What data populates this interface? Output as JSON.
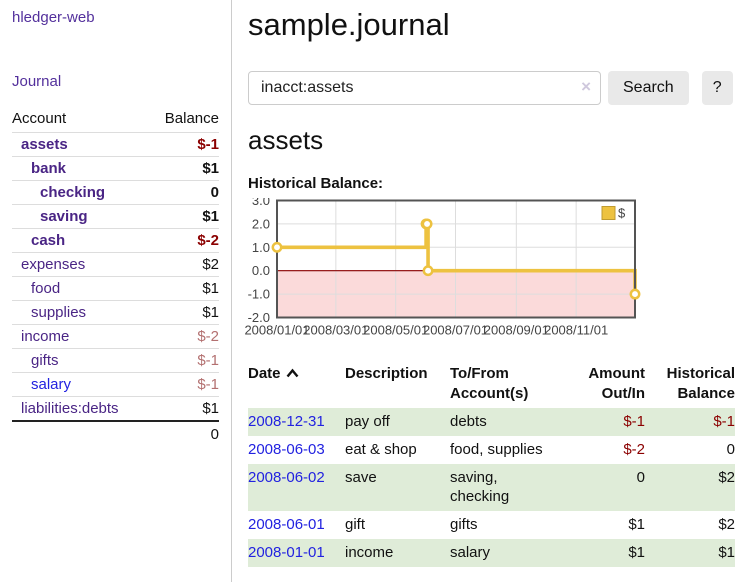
{
  "sidebar": {
    "title": "hledger-web",
    "journal_link": "Journal",
    "accounts_table": {
      "account_header": "Account",
      "balance_header": "Balance",
      "rows": [
        {
          "name": "assets",
          "balance": "$-1",
          "level": 1,
          "bold": true,
          "balance_style": "negative"
        },
        {
          "name": "bank",
          "balance": "$1",
          "level": 2,
          "bold": true,
          "balance_style": "normal"
        },
        {
          "name": "checking",
          "balance": "0",
          "level": 3,
          "bold": true,
          "balance_style": "normal"
        },
        {
          "name": "saving",
          "balance": "$1",
          "level": 3,
          "bold": true,
          "balance_style": "normal"
        },
        {
          "name": "cash",
          "balance": "$-2",
          "level": 2,
          "bold": true,
          "balance_style": "negative"
        },
        {
          "name": "expenses",
          "balance": "$2",
          "level": 1,
          "bold": false,
          "balance_style": "normal"
        },
        {
          "name": "food",
          "balance": "$1",
          "level": 2,
          "bold": false,
          "balance_style": "normal"
        },
        {
          "name": "supplies",
          "balance": "$1",
          "level": 2,
          "bold": false,
          "balance_style": "normal"
        },
        {
          "name": "income",
          "balance": "$-2",
          "level": 1,
          "bold": false,
          "balance_style": "negative-light"
        },
        {
          "name": "gifts",
          "balance": "$-1",
          "level": 2,
          "bold": false,
          "balance_style": "negative-light"
        },
        {
          "name": "salary",
          "balance": "$-1",
          "level": 2,
          "bold": false,
          "balance_style": "negative-light",
          "link_style": "blue"
        },
        {
          "name": "liabilities:debts",
          "balance": "$1",
          "level": 1,
          "bold": false,
          "balance_style": "normal"
        }
      ],
      "total": "0"
    }
  },
  "main": {
    "title": "sample.journal",
    "search": {
      "value": "inacct:assets",
      "clear_icon": "×",
      "search_button": "Search",
      "help_button": "?"
    },
    "account_heading": "assets",
    "chart_title": "Historical Balance:",
    "register": {
      "headers": {
        "date": "Date",
        "description": "Description",
        "accounts": "To/From Account(s)",
        "amount": "Amount Out/In",
        "balance": "Historical Balance"
      },
      "rows": [
        {
          "date": "2008-12-31",
          "description": "pay off",
          "accounts": "debts",
          "amount": "$-1",
          "amount_style": "negative",
          "balance": "$-1",
          "balance_style": "negative"
        },
        {
          "date": "2008-06-03",
          "description": "eat & shop",
          "accounts": "food, supplies",
          "amount": "$-2",
          "amount_style": "negative",
          "balance": "0",
          "balance_style": "normal"
        },
        {
          "date": "2008-06-02",
          "description": "save",
          "accounts": "saving, checking",
          "amount": "0",
          "amount_style": "normal",
          "balance": "$2",
          "balance_style": "normal"
        },
        {
          "date": "2008-06-01",
          "description": "gift",
          "accounts": "gifts",
          "amount": "$1",
          "amount_style": "normal",
          "balance": "$2",
          "balance_style": "normal"
        },
        {
          "date": "2008-01-01",
          "description": "income",
          "accounts": "salary",
          "amount": "$1",
          "amount_style": "normal",
          "balance": "$1",
          "balance_style": "normal"
        }
      ]
    }
  },
  "chart_data": {
    "type": "line",
    "step": true,
    "title": "Historical Balance",
    "series": [
      {
        "name": "$",
        "color": "#edc240",
        "points": [
          [
            "2008-01-01",
            1
          ],
          [
            "2008-06-01",
            2
          ],
          [
            "2008-06-02",
            2
          ],
          [
            "2008-06-03",
            0
          ],
          [
            "2008-12-31",
            -1
          ]
        ]
      }
    ],
    "x_ticks": [
      "2008/01/01",
      "2008/03/01",
      "2008/05/01",
      "2008/07/01",
      "2008/09/01",
      "2008/11/01"
    ],
    "y_ticks": [
      3.0,
      2.0,
      1.0,
      0.0,
      -1.0,
      -2.0
    ],
    "xlim": [
      "2008-01-01",
      "2008-12-31"
    ],
    "ylim": [
      -2,
      3
    ],
    "grid": true,
    "legend": {
      "label": "$",
      "position": "top-right"
    },
    "negative_region_fill": "#fbdada",
    "zero_line_color": "#8b0000",
    "grid_color": "#dddddd",
    "border_color": "#545454",
    "tick_label_color": "#444444"
  },
  "colors": {
    "nav_purple": "#53309c",
    "account_purple": "#4a2585",
    "link_blue": "#2222e0",
    "negative_dark": "#8b0000",
    "negative_light": "#b37070",
    "row_green": "#dfecd8",
    "chart_line": "#edc240",
    "chart_negative_fill": "#fbdada",
    "chart_zero_line": "#8b0000",
    "button_gray": "#e9e9e9"
  }
}
